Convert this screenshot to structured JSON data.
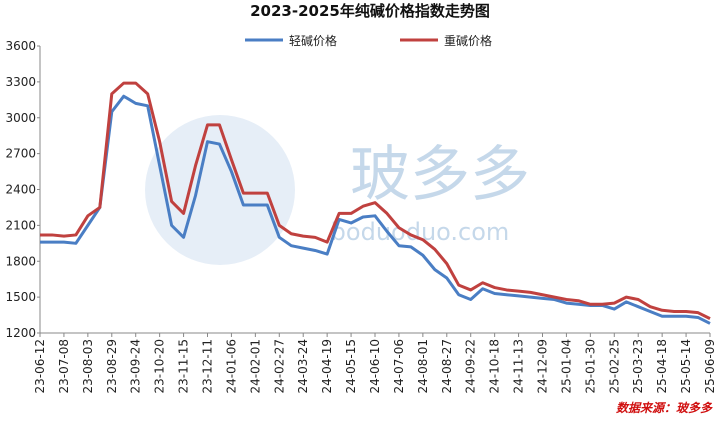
{
  "chart_data": {
    "type": "line",
    "title": "2023-2025年纯碱价格指数走势图",
    "source": "数据来源：玻多多",
    "watermark": [
      "玻多多",
      "boduoduo.com"
    ],
    "categories": [
      "23-06-12",
      null,
      "23-07-08",
      null,
      "23-08-03",
      null,
      "23-08-29",
      null,
      "23-09-24",
      null,
      "23-10-20",
      null,
      "23-11-15",
      null,
      "23-12-11",
      null,
      "24-01-06",
      null,
      "24-02-01",
      null,
      "24-02-27",
      null,
      "24-03-24",
      null,
      "24-04-19",
      null,
      "24-05-15",
      null,
      "24-06-10",
      null,
      "24-07-06",
      null,
      "24-08-01",
      null,
      "24-08-27",
      null,
      "24-09-22",
      null,
      "24-10-18",
      null,
      "24-11-13",
      null,
      "24-12-09",
      null,
      "25-01-04",
      null,
      "25-01-30",
      null,
      "25-02-25",
      null,
      "25-03-23",
      null,
      "25-04-18",
      null,
      "25-05-14",
      null,
      "25-06-09"
    ],
    "series": [
      {
        "name": "轻碱价格",
        "color": "#4a7ec4",
        "values": [
          1960,
          1960,
          1960,
          1950,
          2100,
          2250,
          3050,
          3180,
          3120,
          3100,
          2600,
          2100,
          2000,
          2350,
          2800,
          2780,
          2550,
          2270,
          2270,
          2270,
          2000,
          1930,
          1910,
          1890,
          1860,
          2150,
          2120,
          2170,
          2180,
          2050,
          1930,
          1920,
          1850,
          1730,
          1660,
          1520,
          1480,
          1570,
          1530,
          1520,
          1510,
          1500,
          1490,
          1480,
          1450,
          1440,
          1430,
          1430,
          1400,
          1460,
          1420,
          1380,
          1340,
          1340,
          1340,
          1330,
          1280
        ]
      },
      {
        "name": "重碱价格",
        "color": "#c0413f",
        "values": [
          2020,
          2020,
          2010,
          2020,
          2180,
          2250,
          3200,
          3290,
          3290,
          3200,
          2800,
          2300,
          2200,
          2600,
          2940,
          2940,
          2650,
          2370,
          2370,
          2370,
          2100,
          2030,
          2010,
          2000,
          1960,
          2200,
          2200,
          2260,
          2290,
          2200,
          2080,
          2020,
          1980,
          1900,
          1780,
          1600,
          1560,
          1620,
          1580,
          1560,
          1550,
          1540,
          1520,
          1500,
          1480,
          1470,
          1440,
          1440,
          1450,
          1500,
          1480,
          1420,
          1390,
          1380,
          1380,
          1370,
          1320
        ]
      }
    ],
    "ylim": [
      1200,
      3600
    ],
    "yticks": [
      1200,
      1500,
      1800,
      2100,
      2400,
      2700,
      3000,
      3300,
      3600
    ]
  }
}
